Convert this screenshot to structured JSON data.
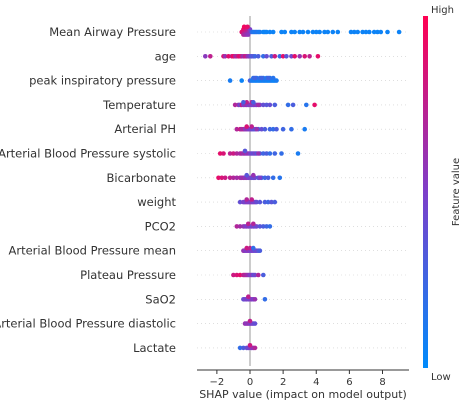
{
  "chart_data": {
    "type": "scatter",
    "subtype": "shap-beeswarm",
    "title": "",
    "xlabel": "SHAP value (impact on model output)",
    "ylabel": "",
    "xlim": [
      -3.2,
      9.6
    ],
    "xticks": [
      -2,
      0,
      2,
      4,
      6,
      8
    ],
    "grid": false,
    "colorbar": {
      "title": "Feature value",
      "high_label": "High",
      "low_label": "Low",
      "high_color": "#ff0052",
      "low_color": "#008bfb"
    },
    "features": [
      {
        "name": "Mean Airway Pressure",
        "points": [
          [
            -0.5,
            0.9
          ],
          [
            -0.45,
            0.85
          ],
          [
            -0.4,
            0.9
          ],
          [
            -0.35,
            0.8
          ],
          [
            -0.3,
            0.85
          ],
          [
            -0.25,
            0.75
          ],
          [
            -0.2,
            0.8
          ],
          [
            -0.15,
            0.7
          ],
          [
            -0.1,
            0.75
          ],
          [
            -0.05,
            0.6
          ],
          [
            0,
            0.5
          ],
          [
            -0.4,
            0.7
          ],
          [
            -0.3,
            0.65
          ],
          [
            -0.2,
            0.6
          ],
          [
            -0.1,
            0.55
          ],
          [
            -0.35,
            0.95
          ],
          [
            -0.15,
            0.9
          ],
          [
            0.1,
            0.2
          ],
          [
            0.2,
            0.15
          ],
          [
            0.3,
            0.1
          ],
          [
            0.4,
            0.15
          ],
          [
            0.5,
            0.1
          ],
          [
            0.6,
            0.1
          ],
          [
            0.8,
            0.05
          ],
          [
            0.9,
            0.05
          ],
          [
            1.0,
            0.05
          ],
          [
            1.2,
            0.05
          ],
          [
            1.4,
            0.05
          ],
          [
            1.9,
            0.05
          ],
          [
            2.1,
            0.05
          ],
          [
            2.5,
            0.05
          ],
          [
            2.7,
            0.05
          ],
          [
            3.0,
            0.05
          ],
          [
            3.2,
            0.05
          ],
          [
            3.5,
            0.05
          ],
          [
            3.8,
            0.05
          ],
          [
            4.0,
            0.05
          ],
          [
            4.2,
            0.05
          ],
          [
            4.5,
            0.05
          ],
          [
            4.7,
            0.05
          ],
          [
            5.0,
            0.05
          ],
          [
            5.3,
            0.05
          ],
          [
            6.1,
            0.05
          ],
          [
            6.3,
            0.05
          ],
          [
            6.5,
            0.05
          ],
          [
            6.8,
            0.05
          ],
          [
            7.0,
            0.05
          ],
          [
            7.2,
            0.05
          ],
          [
            7.5,
            0.05
          ],
          [
            7.7,
            0.05
          ],
          [
            7.9,
            0.05
          ],
          [
            8.3,
            0.05
          ],
          [
            9.0,
            0.05
          ]
        ]
      },
      {
        "name": "age",
        "points": [
          [
            -2.7,
            0.55
          ],
          [
            -2.4,
            0.75
          ],
          [
            -1.6,
            0.85
          ],
          [
            -1.5,
            0.6
          ],
          [
            -1.3,
            0.9
          ],
          [
            -1.1,
            0.8
          ],
          [
            -1.0,
            0.95
          ],
          [
            -0.9,
            0.7
          ],
          [
            -0.8,
            0.65
          ],
          [
            -0.7,
            0.85
          ],
          [
            -0.6,
            0.9
          ],
          [
            -0.5,
            0.75
          ],
          [
            -0.4,
            0.6
          ],
          [
            -0.3,
            0.8
          ],
          [
            -0.2,
            0.7
          ],
          [
            -0.1,
            0.55
          ],
          [
            0,
            0.5
          ],
          [
            0.1,
            0.3
          ],
          [
            0.2,
            0.35
          ],
          [
            0.3,
            0.25
          ],
          [
            0.5,
            0.3
          ],
          [
            0.8,
            0.2
          ],
          [
            1.0,
            0.4
          ],
          [
            1.3,
            0.3
          ],
          [
            1.5,
            0.8
          ],
          [
            1.8,
            0.2
          ],
          [
            2.0,
            0.9
          ],
          [
            2.2,
            0.35
          ],
          [
            2.5,
            0.45
          ],
          [
            2.7,
            0.9
          ],
          [
            3.0,
            0.6
          ],
          [
            3.3,
            0.85
          ],
          [
            3.6,
            0.75
          ],
          [
            4.1,
            0.9
          ]
        ]
      },
      {
        "name": "peak inspiratory pressure",
        "points": [
          [
            -1.2,
            0.1
          ],
          [
            -0.5,
            0.05
          ],
          [
            0,
            0.3
          ],
          [
            0.1,
            0.1
          ],
          [
            0.2,
            0.1
          ],
          [
            0.3,
            0.05
          ],
          [
            0.4,
            0.1
          ],
          [
            0.5,
            0.05
          ],
          [
            0.6,
            0.1
          ],
          [
            0.7,
            0.05
          ],
          [
            0.8,
            0.1
          ],
          [
            0.9,
            0.05
          ],
          [
            1.0,
            0.1
          ],
          [
            1.1,
            0.05
          ],
          [
            1.2,
            0.05
          ],
          [
            1.3,
            0.1
          ],
          [
            1.4,
            0.05
          ],
          [
            1.5,
            0.05
          ],
          [
            1.6,
            0.1
          ],
          [
            0.2,
            0.2
          ],
          [
            0.4,
            0.15
          ],
          [
            0.6,
            0.2
          ],
          [
            0.8,
            0.15
          ],
          [
            1.0,
            0.15
          ],
          [
            1.2,
            0.15
          ],
          [
            1.4,
            0.15
          ],
          [
            0.3,
            0.25
          ],
          [
            0.7,
            0.25
          ],
          [
            1.1,
            0.25
          ]
        ]
      },
      {
        "name": "Temperature",
        "points": [
          [
            -0.9,
            0.7
          ],
          [
            -0.7,
            0.6
          ],
          [
            -0.6,
            0.4
          ],
          [
            -0.5,
            0.8
          ],
          [
            -0.4,
            0.5
          ],
          [
            -0.3,
            0.55
          ],
          [
            -0.2,
            0.6
          ],
          [
            -0.1,
            0.5
          ],
          [
            0,
            0.55
          ],
          [
            0.1,
            0.5
          ],
          [
            0.2,
            0.45
          ],
          [
            0.3,
            0.55
          ],
          [
            0.4,
            0.5
          ],
          [
            0.6,
            0.45
          ],
          [
            0.8,
            0.4
          ],
          [
            1.0,
            0.35
          ],
          [
            1.2,
            0.4
          ],
          [
            1.5,
            0.3
          ],
          [
            2.3,
            0.2
          ],
          [
            2.6,
            0.3
          ],
          [
            3.4,
            0.15
          ],
          [
            3.9,
            0.9
          ],
          [
            -0.2,
            0.75
          ],
          [
            0.1,
            0.7
          ],
          [
            0.5,
            0.65
          ],
          [
            -0.4,
            0.3
          ],
          [
            0.2,
            0.3
          ]
        ]
      },
      {
        "name": "Arterial PH",
        "points": [
          [
            -0.8,
            0.7
          ],
          [
            -0.6,
            0.8
          ],
          [
            -0.5,
            0.65
          ],
          [
            -0.4,
            0.7
          ],
          [
            -0.3,
            0.55
          ],
          [
            -0.2,
            0.6
          ],
          [
            -0.1,
            0.5
          ],
          [
            0,
            0.5
          ],
          [
            0.1,
            0.45
          ],
          [
            0.2,
            0.4
          ],
          [
            0.3,
            0.35
          ],
          [
            0.5,
            0.3
          ],
          [
            0.7,
            0.4
          ],
          [
            0.9,
            0.3
          ],
          [
            1.2,
            0.25
          ],
          [
            1.4,
            0.2
          ],
          [
            1.6,
            0.3
          ],
          [
            2.0,
            0.25
          ],
          [
            2.5,
            0.2
          ],
          [
            3.3,
            0.1
          ],
          [
            -0.2,
            0.85
          ],
          [
            0.1,
            0.75
          ],
          [
            0.4,
            0.6
          ]
        ]
      },
      {
        "name": "Arterial Blood Pressure systolic",
        "points": [
          [
            -1.8,
            0.9
          ],
          [
            -1.6,
            0.85
          ],
          [
            -1.2,
            0.75
          ],
          [
            -1.0,
            0.8
          ],
          [
            -0.8,
            0.7
          ],
          [
            -0.6,
            0.65
          ],
          [
            -0.5,
            0.7
          ],
          [
            -0.4,
            0.6
          ],
          [
            -0.3,
            0.65
          ],
          [
            -0.2,
            0.55
          ],
          [
            -0.1,
            0.6
          ],
          [
            0,
            0.5
          ],
          [
            0.1,
            0.45
          ],
          [
            0.2,
            0.4
          ],
          [
            0.3,
            0.5
          ],
          [
            0.4,
            0.35
          ],
          [
            0.6,
            0.3
          ],
          [
            0.8,
            0.25
          ],
          [
            1.0,
            0.3
          ],
          [
            1.2,
            0.2
          ],
          [
            1.5,
            0.25
          ],
          [
            1.9,
            0.2
          ],
          [
            2.9,
            0.1
          ],
          [
            0.5,
            0.6
          ],
          [
            -0.3,
            0.35
          ]
        ]
      },
      {
        "name": "Bicarbonate",
        "points": [
          [
            -1.9,
            0.9
          ],
          [
            -1.7,
            0.85
          ],
          [
            -1.5,
            0.8
          ],
          [
            -1.2,
            0.75
          ],
          [
            -1.0,
            0.7
          ],
          [
            -0.8,
            0.65
          ],
          [
            -0.6,
            0.7
          ],
          [
            -0.5,
            0.6
          ],
          [
            -0.4,
            0.65
          ],
          [
            -0.3,
            0.55
          ],
          [
            -0.2,
            0.6
          ],
          [
            -0.1,
            0.5
          ],
          [
            0,
            0.5
          ],
          [
            0.1,
            0.45
          ],
          [
            0.2,
            0.4
          ],
          [
            0.3,
            0.45
          ],
          [
            0.5,
            0.35
          ],
          [
            0.7,
            0.3
          ],
          [
            0.9,
            0.25
          ],
          [
            1.1,
            0.3
          ],
          [
            1.4,
            0.2
          ],
          [
            1.8,
            0.15
          ],
          [
            0.2,
            0.6
          ],
          [
            -0.2,
            0.35
          ],
          [
            0.6,
            0.5
          ]
        ]
      },
      {
        "name": "weight",
        "points": [
          [
            -0.6,
            0.4
          ],
          [
            -0.4,
            0.5
          ],
          [
            -0.3,
            0.45
          ],
          [
            -0.2,
            0.55
          ],
          [
            -0.1,
            0.5
          ],
          [
            0,
            0.5
          ],
          [
            0.1,
            0.55
          ],
          [
            0.2,
            0.45
          ],
          [
            0.3,
            0.5
          ],
          [
            0.4,
            0.4
          ],
          [
            0.6,
            0.35
          ],
          [
            0.9,
            0.3
          ],
          [
            1.1,
            0.25
          ],
          [
            1.3,
            0.35
          ],
          [
            1.5,
            0.3
          ],
          [
            -0.2,
            0.7
          ],
          [
            0.1,
            0.75
          ]
        ]
      },
      {
        "name": "PCO2",
        "points": [
          [
            -0.8,
            0.7
          ],
          [
            -0.6,
            0.65
          ],
          [
            -0.4,
            0.6
          ],
          [
            -0.3,
            0.55
          ],
          [
            -0.2,
            0.5
          ],
          [
            -0.1,
            0.55
          ],
          [
            0,
            0.5
          ],
          [
            0.1,
            0.45
          ],
          [
            0.2,
            0.5
          ],
          [
            0.3,
            0.4
          ],
          [
            0.4,
            0.45
          ],
          [
            0.6,
            0.35
          ],
          [
            0.8,
            0.3
          ],
          [
            1.0,
            0.25
          ],
          [
            1.2,
            0.2
          ],
          [
            -0.1,
            0.75
          ],
          [
            0.2,
            0.7
          ]
        ]
      },
      {
        "name": "Arterial Blood Pressure mean",
        "points": [
          [
            -0.4,
            0.6
          ],
          [
            -0.3,
            0.55
          ],
          [
            -0.2,
            0.5
          ],
          [
            -0.1,
            0.55
          ],
          [
            0,
            0.5
          ],
          [
            0.1,
            0.45
          ],
          [
            0.2,
            0.5
          ],
          [
            0.3,
            0.4
          ],
          [
            0.4,
            0.45
          ],
          [
            0.5,
            0.35
          ],
          [
            0.6,
            0.3
          ],
          [
            -0.2,
            0.8
          ],
          [
            0,
            0.75
          ],
          [
            0.2,
            0.2
          ]
        ]
      },
      {
        "name": "Plateau Pressure",
        "points": [
          [
            -1.0,
            0.8
          ],
          [
            -0.8,
            0.85
          ],
          [
            -0.6,
            0.9
          ],
          [
            -0.4,
            0.75
          ],
          [
            -0.3,
            0.7
          ],
          [
            -0.2,
            0.65
          ],
          [
            -0.1,
            0.6
          ],
          [
            0,
            0.5
          ],
          [
            0.1,
            0.55
          ],
          [
            0.2,
            0.4
          ],
          [
            0.3,
            0.45
          ],
          [
            0.5,
            0.7
          ],
          [
            0.8,
            0.3
          ]
        ]
      },
      {
        "name": "SaO2",
        "points": [
          [
            -0.4,
            0.4
          ],
          [
            -0.3,
            0.45
          ],
          [
            -0.2,
            0.5
          ],
          [
            -0.1,
            0.45
          ],
          [
            0,
            0.5
          ],
          [
            0.1,
            0.55
          ],
          [
            0.2,
            0.5
          ],
          [
            0.3,
            0.6
          ],
          [
            0.9,
            0.2
          ],
          [
            -0.1,
            0.75
          ]
        ]
      },
      {
        "name": "Arterial Blood Pressure diastolic",
        "points": [
          [
            -0.3,
            0.6
          ],
          [
            -0.2,
            0.55
          ],
          [
            -0.1,
            0.6
          ],
          [
            0,
            0.5
          ],
          [
            0.1,
            0.5
          ],
          [
            0.2,
            0.45
          ],
          [
            0.3,
            0.4
          ],
          [
            0,
            0.75
          ]
        ]
      },
      {
        "name": "Lactate",
        "points": [
          [
            -0.6,
            0.2
          ],
          [
            -0.4,
            0.3
          ],
          [
            -0.2,
            0.4
          ],
          [
            -0.1,
            0.45
          ],
          [
            0,
            0.5
          ],
          [
            0.1,
            0.55
          ],
          [
            0.2,
            0.6
          ],
          [
            0.3,
            0.7
          ],
          [
            0,
            0.8
          ]
        ]
      }
    ]
  }
}
